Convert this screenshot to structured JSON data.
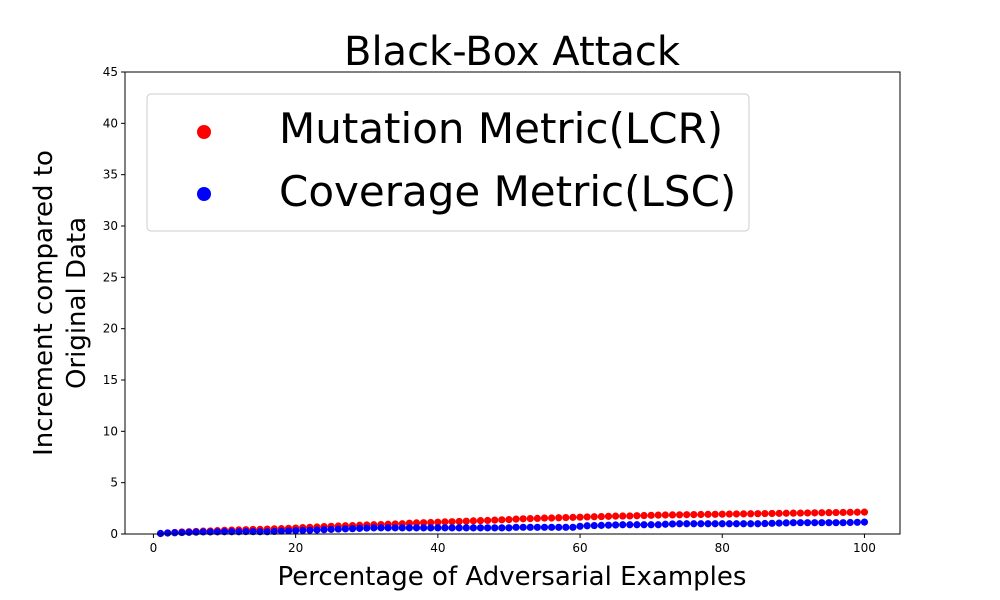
{
  "chart_data": {
    "type": "scatter",
    "title": "Black-Box Attack",
    "xlabel": "Percentage of Adversarial Examples",
    "ylabel_lines": [
      "Increment compared to",
      "Original Data"
    ],
    "xlim": [
      -4,
      105
    ],
    "ylim": [
      0,
      45
    ],
    "xticks": [
      0,
      20,
      40,
      60,
      80,
      100
    ],
    "yticks": [
      0,
      5,
      10,
      15,
      20,
      25,
      30,
      35,
      40,
      45
    ],
    "grid": false,
    "legend_position": "top-left",
    "series": [
      {
        "name": "Mutation Metric(LCR)",
        "color": "#ff0000",
        "x": [
          1,
          2,
          3,
          4,
          5,
          6,
          7,
          8,
          9,
          10,
          11,
          12,
          13,
          14,
          15,
          16,
          17,
          18,
          19,
          20,
          21,
          22,
          23,
          24,
          25,
          26,
          27,
          28,
          29,
          30,
          31,
          32,
          33,
          34,
          35,
          36,
          37,
          38,
          39,
          40,
          41,
          42,
          43,
          44,
          45,
          46,
          47,
          48,
          49,
          50,
          51,
          52,
          53,
          54,
          55,
          56,
          57,
          58,
          59,
          60,
          61,
          62,
          63,
          64,
          65,
          66,
          67,
          68,
          69,
          70,
          71,
          72,
          73,
          74,
          75,
          76,
          77,
          78,
          79,
          80,
          81,
          82,
          83,
          84,
          85,
          86,
          87,
          88,
          89,
          90,
          91,
          92,
          93,
          94,
          95,
          96,
          97,
          98,
          99,
          100
        ],
        "y": [
          0.05,
          0.1,
          0.15,
          0.2,
          0.22,
          0.25,
          0.28,
          0.3,
          0.33,
          0.36,
          0.38,
          0.4,
          0.42,
          0.44,
          0.45,
          0.48,
          0.5,
          0.52,
          0.55,
          0.58,
          0.62,
          0.65,
          0.68,
          0.72,
          0.75,
          0.78,
          0.8,
          0.82,
          0.85,
          0.88,
          0.9,
          0.92,
          0.95,
          0.98,
          1.0,
          1.05,
          1.08,
          1.1,
          1.12,
          1.15,
          1.18,
          1.2,
          1.22,
          1.25,
          1.28,
          1.3,
          1.32,
          1.35,
          1.38,
          1.4,
          1.45,
          1.48,
          1.5,
          1.52,
          1.55,
          1.56,
          1.58,
          1.6,
          1.62,
          1.64,
          1.66,
          1.68,
          1.7,
          1.72,
          1.74,
          1.75,
          1.76,
          1.78,
          1.8,
          1.82,
          1.84,
          1.85,
          1.86,
          1.87,
          1.88,
          1.89,
          1.9,
          1.91,
          1.92,
          1.93,
          1.94,
          1.95,
          1.96,
          1.97,
          1.98,
          1.99,
          2.0,
          2.01,
          2.02,
          2.03,
          2.04,
          2.05,
          2.06,
          2.07,
          2.08,
          2.09,
          2.1,
          2.11,
          2.12,
          2.13
        ]
      },
      {
        "name": "Coverage Metric(LSC)",
        "color": "#0000ff",
        "x": [
          1,
          2,
          3,
          4,
          5,
          6,
          7,
          8,
          9,
          10,
          11,
          12,
          13,
          14,
          15,
          16,
          17,
          18,
          19,
          20,
          21,
          22,
          23,
          24,
          25,
          26,
          27,
          28,
          29,
          30,
          31,
          32,
          33,
          34,
          35,
          36,
          37,
          38,
          39,
          40,
          41,
          42,
          43,
          44,
          45,
          46,
          47,
          48,
          49,
          50,
          51,
          52,
          53,
          54,
          55,
          56,
          57,
          58,
          59,
          60,
          61,
          62,
          63,
          64,
          65,
          66,
          67,
          68,
          69,
          70,
          71,
          72,
          73,
          74,
          75,
          76,
          77,
          78,
          79,
          80,
          81,
          82,
          83,
          84,
          85,
          86,
          87,
          88,
          89,
          90,
          91,
          92,
          93,
          94,
          95,
          96,
          97,
          98,
          99,
          100
        ],
        "y": [
          0.05,
          0.1,
          0.12,
          0.14,
          0.16,
          0.18,
          0.2,
          0.2,
          0.21,
          0.22,
          0.22,
          0.22,
          0.23,
          0.23,
          0.22,
          0.22,
          0.25,
          0.28,
          0.3,
          0.32,
          0.35,
          0.37,
          0.39,
          0.42,
          0.45,
          0.48,
          0.5,
          0.52,
          0.55,
          0.58,
          0.6,
          0.6,
          0.6,
          0.6,
          0.6,
          0.6,
          0.6,
          0.6,
          0.6,
          0.6,
          0.6,
          0.6,
          0.6,
          0.6,
          0.6,
          0.6,
          0.6,
          0.6,
          0.6,
          0.6,
          0.65,
          0.65,
          0.65,
          0.65,
          0.65,
          0.65,
          0.65,
          0.65,
          0.65,
          0.75,
          0.8,
          0.82,
          0.84,
          0.86,
          0.88,
          0.9,
          0.9,
          0.9,
          0.9,
          0.9,
          0.9,
          0.95,
          0.98,
          1.0,
          1.0,
          1.0,
          1.0,
          1.0,
          1.0,
          1.0,
          1.0,
          1.0,
          1.0,
          1.0,
          1.0,
          1.02,
          1.04,
          1.06,
          1.08,
          1.1,
          1.1,
          1.1,
          1.1,
          1.1,
          1.1,
          1.1,
          1.1,
          1.12,
          1.14,
          1.16
        ]
      }
    ]
  }
}
